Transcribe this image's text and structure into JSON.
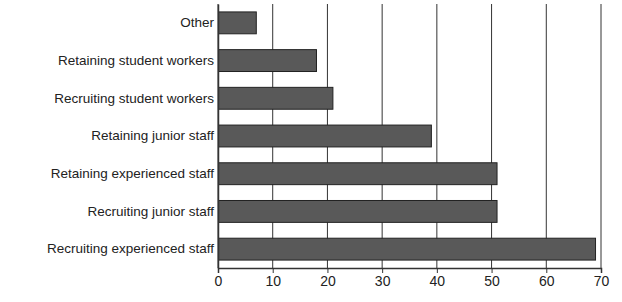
{
  "chart_data": {
    "type": "bar",
    "orientation": "horizontal",
    "categories": [
      "Other",
      "Retaining student workers",
      "Recruiting student workers",
      "Retaining junior staff",
      "Retaining experienced staff",
      "Recruiting junior staff",
      "Recruiting experienced staff"
    ],
    "values": [
      7,
      18,
      21,
      39,
      51,
      51,
      69
    ],
    "color": "#595959",
    "xlim": [
      0,
      70
    ],
    "xticks": [
      0,
      10,
      20,
      30,
      40,
      50,
      60,
      70
    ],
    "grid": true
  }
}
